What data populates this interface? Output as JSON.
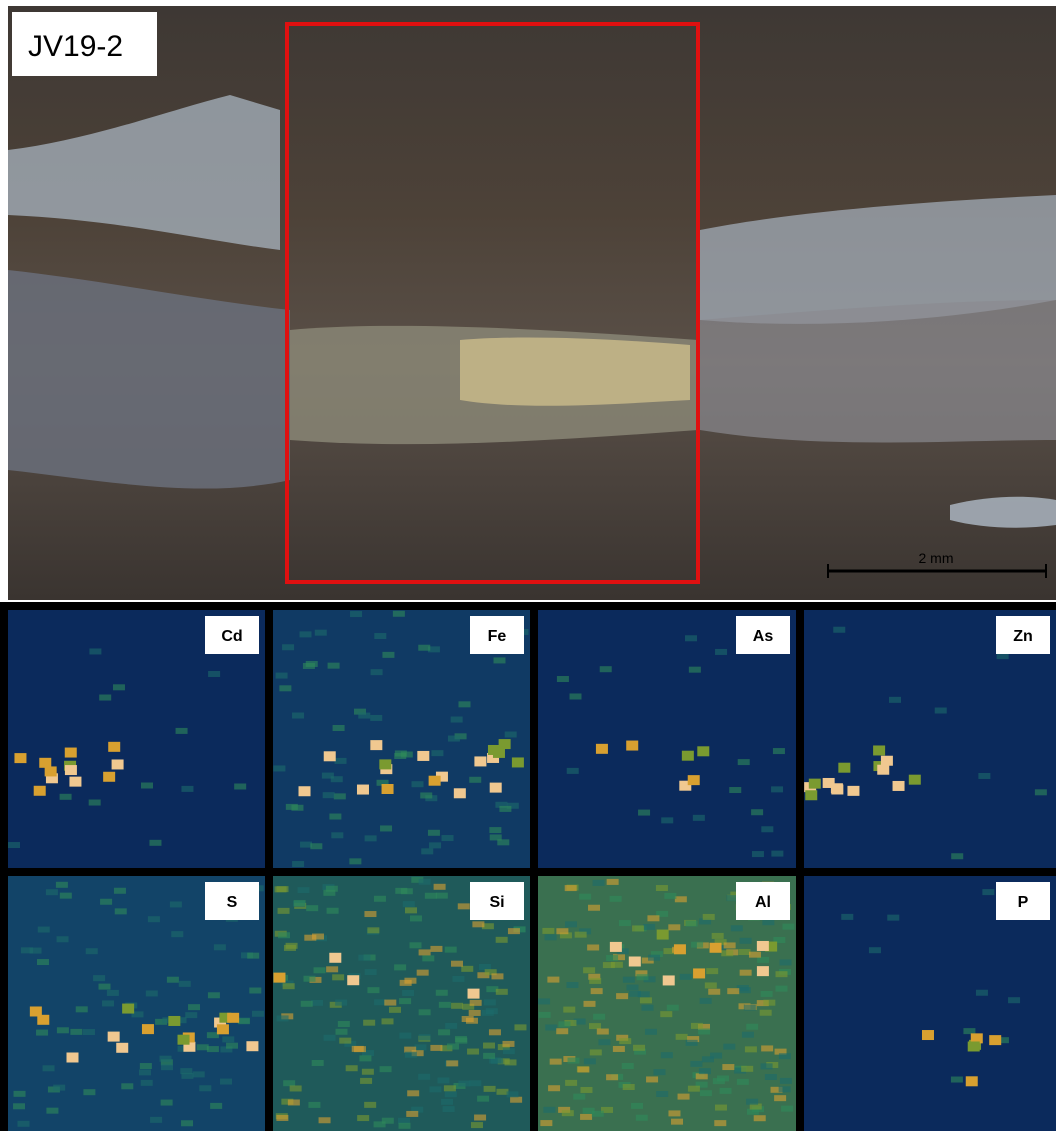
{
  "image": {
    "label": "JV19-2",
    "scale_bar": "2 mm"
  },
  "maps": [
    {
      "element": "Cd"
    },
    {
      "element": "Fe"
    },
    {
      "element": "As"
    },
    {
      "element": "Zn"
    },
    {
      "element": "S"
    },
    {
      "element": "Si"
    },
    {
      "element": "Al"
    },
    {
      "element": "P"
    }
  ]
}
